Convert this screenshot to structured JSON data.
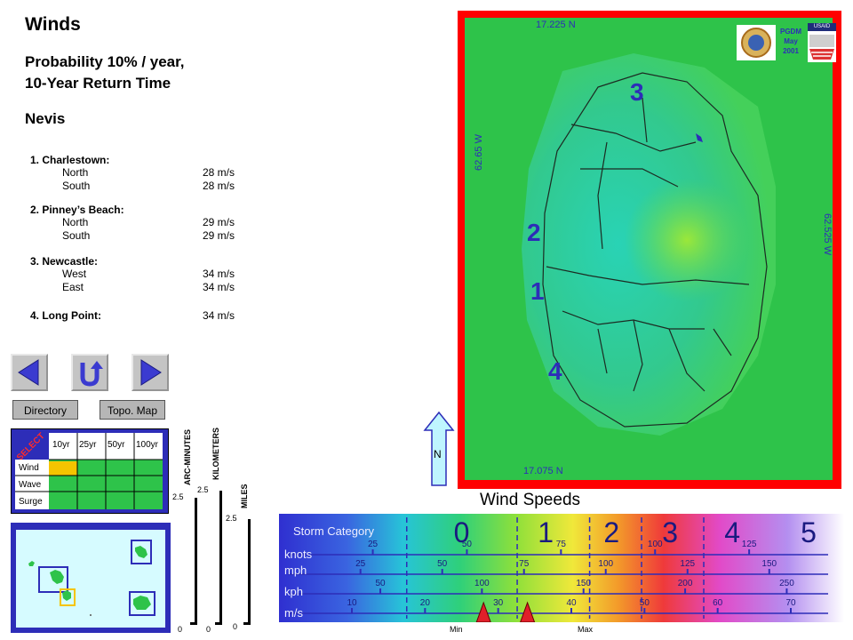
{
  "header": {
    "title": "Winds",
    "subtitle_line1": "Probability 10% / year,",
    "subtitle_line2": "10-Year Return Time",
    "island": "Nevis"
  },
  "locations": [
    {
      "name": "1. Charlestown:",
      "rows": [
        {
          "dir": "North",
          "speed": "28 m/s"
        },
        {
          "dir": "South",
          "speed": "28 m/s"
        }
      ]
    },
    {
      "name": "2. Pinney’s Beach:",
      "rows": [
        {
          "dir": "North",
          "speed": "29 m/s"
        },
        {
          "dir": "South",
          "speed": "29 m/s"
        }
      ]
    },
    {
      "name": "3. Newcastle:",
      "rows": [
        {
          "dir": "West",
          "speed": "34 m/s"
        },
        {
          "dir": "East",
          "speed": "34 m/s"
        }
      ]
    },
    {
      "name": "4. Long Point:",
      "speed": "34 m/s"
    }
  ],
  "nav": {
    "directory": "Directory",
    "topo_map": "Topo. Map"
  },
  "selector": {
    "select_label": "SELECT",
    "columns": [
      "10yr",
      "25yr",
      "50yr",
      "100yr"
    ],
    "rows": [
      "Wind",
      "Wave",
      "Surge"
    ],
    "active": {
      "row": "Wind",
      "column": "10yr"
    }
  },
  "scales": {
    "arc_label": "ARC-MINUTES",
    "arc_top": "2.5",
    "arc_bottom": "0",
    "km_label": "KILOMETERS",
    "km_top": "2.5",
    "km_bottom": "0",
    "mi_label": "MILES",
    "mi_top": "2.5",
    "mi_bottom": "0"
  },
  "map": {
    "lat_top": "17.225 N",
    "lat_bottom": "17.075 N",
    "lon_left": "62.65 W",
    "lon_right": "62.525 W",
    "markers": [
      "3",
      "2",
      "1",
      "4"
    ],
    "north": "N",
    "credit_line1": "PGDM",
    "credit_line2": "May",
    "credit_line3": "2001",
    "usaid": "USAID"
  },
  "legend": {
    "title": "Wind Speeds",
    "storm_label": "Storm Category",
    "categories": [
      "0",
      "1",
      "2",
      "3",
      "4",
      "5"
    ],
    "units": [
      {
        "name": "knots",
        "ticks": [
          "25",
          "50",
          "75",
          "100",
          "125"
        ]
      },
      {
        "name": "mph",
        "ticks": [
          "25",
          "50",
          "75",
          "100",
          "125",
          "150"
        ]
      },
      {
        "name": "kph",
        "ticks": [
          "50",
          "100",
          "150",
          "200",
          "250"
        ]
      },
      {
        "name": "m/s",
        "ticks": [
          "10",
          "20",
          "30",
          "40",
          "50",
          "60",
          "70"
        ]
      }
    ],
    "min_label": "Min",
    "max_label": "Max",
    "min_ms": 28,
    "max_ms": 34
  },
  "colors": {
    "frame": "#ff0000",
    "land": "#2ec34a",
    "panel": "#2d2db8",
    "selected": "#f5c400"
  }
}
